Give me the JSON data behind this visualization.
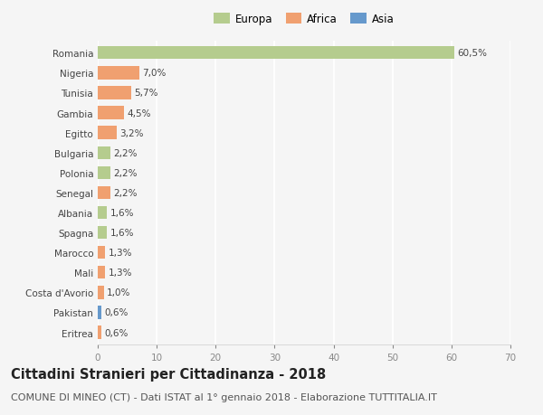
{
  "countries": [
    "Romania",
    "Nigeria",
    "Tunisia",
    "Gambia",
    "Egitto",
    "Bulgaria",
    "Polonia",
    "Senegal",
    "Albania",
    "Spagna",
    "Marocco",
    "Mali",
    "Costa d'Avorio",
    "Pakistan",
    "Eritrea"
  ],
  "values": [
    60.5,
    7.0,
    5.7,
    4.5,
    3.2,
    2.2,
    2.2,
    2.2,
    1.6,
    1.6,
    1.3,
    1.3,
    1.0,
    0.6,
    0.6
  ],
  "labels": [
    "60,5%",
    "7,0%",
    "5,7%",
    "4,5%",
    "3,2%",
    "2,2%",
    "2,2%",
    "2,2%",
    "1,6%",
    "1,6%",
    "1,3%",
    "1,3%",
    "1,0%",
    "0,6%",
    "0,6%"
  ],
  "continents": [
    "Europa",
    "Africa",
    "Africa",
    "Africa",
    "Africa",
    "Europa",
    "Europa",
    "Africa",
    "Europa",
    "Europa",
    "Africa",
    "Africa",
    "Africa",
    "Asia",
    "Africa"
  ],
  "continent_colors": {
    "Europa": "#b5cc8e",
    "Africa": "#f0a070",
    "Asia": "#6699cc"
  },
  "xlim": [
    0,
    70
  ],
  "xticks": [
    0,
    10,
    20,
    30,
    40,
    50,
    60,
    70
  ],
  "title": "Cittadini Stranieri per Cittadinanza - 2018",
  "subtitle": "COMUNE DI MINEO (CT) - Dati ISTAT al 1° gennaio 2018 - Elaborazione TUTTITALIA.IT",
  "background_color": "#f5f5f5",
  "grid_color": "#ffffff",
  "bar_height": 0.65,
  "title_fontsize": 10.5,
  "subtitle_fontsize": 8,
  "label_fontsize": 7.5,
  "tick_fontsize": 7.5,
  "legend_fontsize": 8.5
}
